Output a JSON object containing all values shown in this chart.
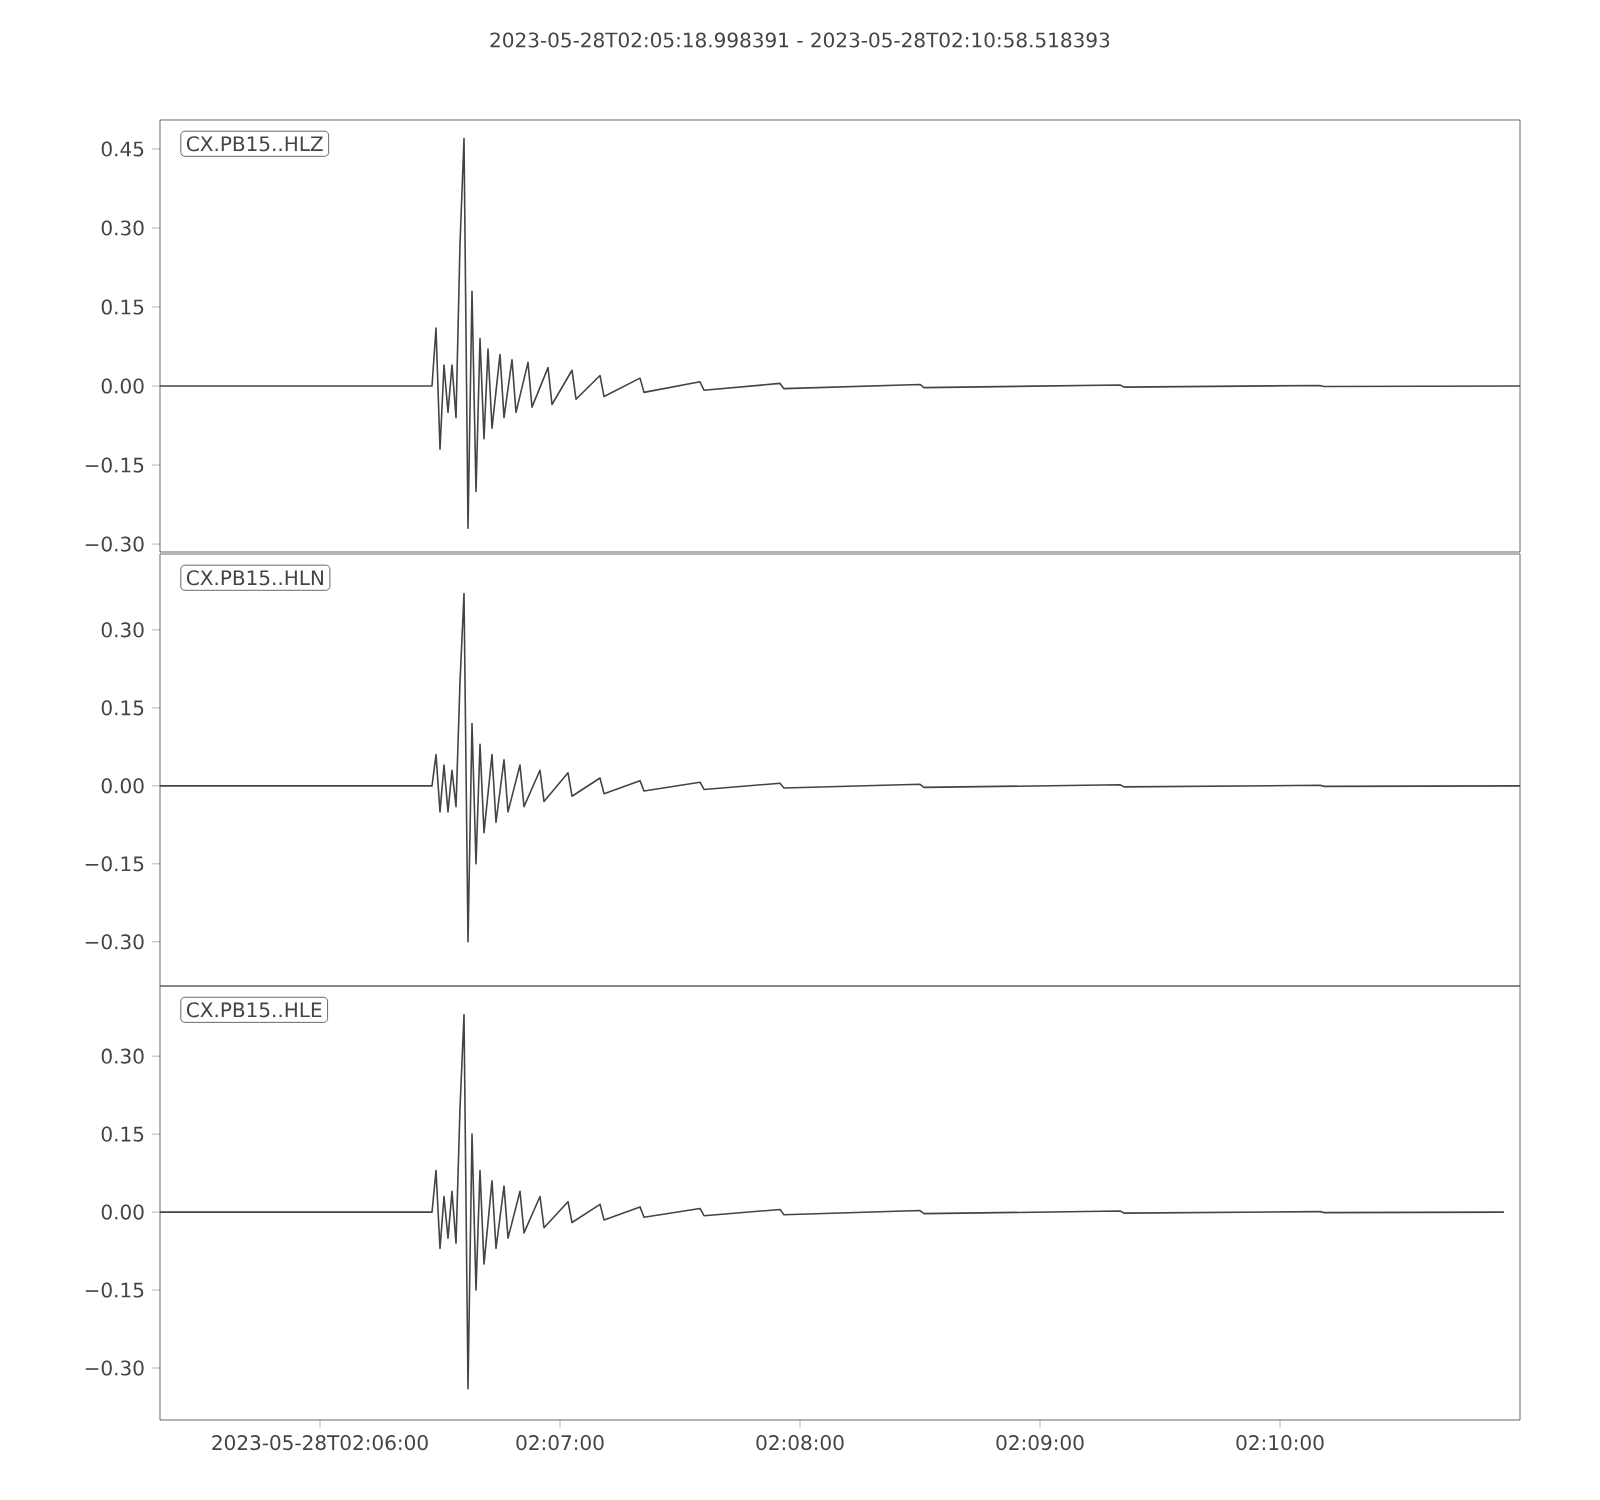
{
  "chart_data": [
    {
      "type": "line",
      "title": "2023-05-28T02:05:18.998391  -  2023-05-28T02:10:58.518393",
      "annotations": [
        "CX.PB15..HLZ"
      ],
      "tick_labels": "y",
      "x": [
        "2023-05-28T02:05:20",
        "2023-05-28T02:06:28",
        "2023-05-28T02:06:29",
        "2023-05-28T02:06:30",
        "2023-05-28T02:06:31",
        "2023-05-28T02:06:32",
        "2023-05-28T02:06:33",
        "2023-05-28T02:06:34",
        "2023-05-28T02:06:35",
        "2023-05-28T02:06:36",
        "2023-05-28T02:06:37",
        "2023-05-28T02:06:38",
        "2023-05-28T02:06:39",
        "2023-05-28T02:06:40",
        "2023-05-28T02:06:41",
        "2023-05-28T02:06:42",
        "2023-05-28T02:06:43",
        "2023-05-28T02:06:45",
        "2023-05-28T02:06:46",
        "2023-05-28T02:06:48",
        "2023-05-28T02:06:49",
        "2023-05-28T02:06:52",
        "2023-05-28T02:06:53",
        "2023-05-28T02:06:57",
        "2023-05-28T02:06:58",
        "2023-05-28T02:07:03",
        "2023-05-28T02:07:04",
        "2023-05-28T02:07:10",
        "2023-05-28T02:07:11",
        "2023-05-28T02:07:20",
        "2023-05-28T02:07:21",
        "2023-05-28T02:07:35",
        "2023-05-28T02:07:36",
        "2023-05-28T02:07:55",
        "2023-05-28T02:07:56",
        "2023-05-28T02:08:30",
        "2023-05-28T02:08:31",
        "2023-05-28T02:09:20",
        "2023-05-28T02:09:21",
        "2023-05-28T02:10:10",
        "2023-05-28T02:10:11",
        "2023-05-28T02:11:00"
      ],
      "series": [
        {
          "color": "#444444",
          "values": [
            0,
            0,
            0.11,
            -0.12,
            0.04,
            -0.05,
            0.04,
            -0.06,
            0.27,
            0.47,
            -0.27,
            0.18,
            -0.2,
            0.09,
            -0.1,
            0.07,
            -0.08,
            0.06,
            -0.06,
            0.05,
            -0.05,
            0.045,
            -0.04,
            0.035,
            -0.035,
            0.03,
            -0.025,
            0.02,
            -0.02,
            0.015,
            -0.012,
            0.008,
            -0.008,
            0.005,
            -0.005,
            0.003,
            -0.003,
            0.002,
            -0.002,
            0.001,
            -0.001,
            0
          ]
        }
      ],
      "xlim": [
        "2023-05-28T02:05:20",
        "2023-05-28T02:11:00"
      ],
      "ylim": [
        -0.315,
        0.505
      ],
      "yticks": [
        {
          "value": -0.3,
          "label": "−0.30"
        },
        {
          "value": -0.15,
          "label": "−0.15"
        },
        {
          "value": 0,
          "label": "0.00"
        },
        {
          "value": 0.15,
          "label": "0.15"
        },
        {
          "value": 0.3,
          "label": "0.30"
        },
        {
          "value": 0.45,
          "label": "0.45"
        }
      ]
    },
    {
      "type": "line",
      "annotations": [
        "CX.PB15..HLN"
      ],
      "tick_labels": "y",
      "x": [
        "2023-05-28T02:05:20",
        "2023-05-28T02:06:28",
        "2023-05-28T02:06:29",
        "2023-05-28T02:06:30",
        "2023-05-28T02:06:31",
        "2023-05-28T02:06:32",
        "2023-05-28T02:06:33",
        "2023-05-28T02:06:34",
        "2023-05-28T02:06:35",
        "2023-05-28T02:06:36",
        "2023-05-28T02:06:37",
        "2023-05-28T02:06:38",
        "2023-05-28T02:06:39",
        "2023-05-28T02:06:40",
        "2023-05-28T02:06:41",
        "2023-05-28T02:06:43",
        "2023-05-28T02:06:44",
        "2023-05-28T02:06:46",
        "2023-05-28T02:06:47",
        "2023-05-28T02:06:50",
        "2023-05-28T02:06:51",
        "2023-05-28T02:06:55",
        "2023-05-28T02:06:56",
        "2023-05-28T02:07:02",
        "2023-05-28T02:07:03",
        "2023-05-28T02:07:10",
        "2023-05-28T02:07:11",
        "2023-05-28T02:07:20",
        "2023-05-28T02:07:21",
        "2023-05-28T02:07:35",
        "2023-05-28T02:07:36",
        "2023-05-28T02:07:55",
        "2023-05-28T02:07:56",
        "2023-05-28T02:08:30",
        "2023-05-28T02:08:31",
        "2023-05-28T02:09:20",
        "2023-05-28T02:09:21",
        "2023-05-28T02:10:10",
        "2023-05-28T02:10:11",
        "2023-05-28T02:11:00"
      ],
      "series": [
        {
          "color": "#444444",
          "values": [
            0,
            0,
            0.06,
            -0.05,
            0.04,
            -0.05,
            0.03,
            -0.04,
            0.2,
            0.37,
            -0.3,
            0.12,
            -0.15,
            0.08,
            -0.09,
            0.06,
            -0.07,
            0.05,
            -0.05,
            0.04,
            -0.04,
            0.03,
            -0.03,
            0.025,
            -0.02,
            0.015,
            -0.015,
            0.01,
            -0.01,
            0.007,
            -0.007,
            0.005,
            -0.004,
            0.003,
            -0.003,
            0.002,
            -0.002,
            0.001,
            -0.001,
            0
          ]
        }
      ],
      "xlim": [
        "2023-05-28T02:05:20",
        "2023-05-28T02:11:00"
      ],
      "ylim": [
        -0.385,
        0.446
      ],
      "yticks": [
        {
          "value": -0.3,
          "label": "−0.30"
        },
        {
          "value": -0.15,
          "label": "−0.15"
        },
        {
          "value": 0,
          "label": "0.00"
        },
        {
          "value": 0.15,
          "label": "0.15"
        },
        {
          "value": 0.3,
          "label": "0.30"
        }
      ]
    },
    {
      "type": "line",
      "annotations": [
        "CX.PB15..HLE"
      ],
      "x": [
        "2023-05-28T02:05:20",
        "2023-05-28T02:06:28",
        "2023-05-28T02:06:29",
        "2023-05-28T02:06:30",
        "2023-05-28T02:06:31",
        "2023-05-28T02:06:32",
        "2023-05-28T02:06:33",
        "2023-05-28T02:06:34",
        "2023-05-28T02:06:35",
        "2023-05-28T02:06:36",
        "2023-05-28T02:06:37",
        "2023-05-28T02:06:38",
        "2023-05-28T02:06:39",
        "2023-05-28T02:06:40",
        "2023-05-28T02:06:41",
        "2023-05-28T02:06:43",
        "2023-05-28T02:06:44",
        "2023-05-28T02:06:46",
        "2023-05-28T02:06:47",
        "2023-05-28T02:06:50",
        "2023-05-28T02:06:51",
        "2023-05-28T02:06:55",
        "2023-05-28T02:06:56",
        "2023-05-28T02:07:02",
        "2023-05-28T02:07:03",
        "2023-05-28T02:07:10",
        "2023-05-28T02:07:11",
        "2023-05-28T02:07:20",
        "2023-05-28T02:07:21",
        "2023-05-28T02:07:35",
        "2023-05-28T02:07:36",
        "2023-05-28T02:07:55",
        "2023-05-28T02:07:56",
        "2023-05-28T02:08:30",
        "2023-05-28T02:08:31",
        "2023-05-28T02:09:20",
        "2023-05-28T02:09:21",
        "2023-05-28T02:10:10",
        "2023-05-28T02:10:11",
        "2023-05-28T02:10:56"
      ],
      "series": [
        {
          "color": "#444444",
          "values": [
            0,
            0,
            0.08,
            -0.07,
            0.03,
            -0.05,
            0.04,
            -0.06,
            0.2,
            0.38,
            -0.34,
            0.15,
            -0.15,
            0.08,
            -0.1,
            0.06,
            -0.07,
            0.05,
            -0.05,
            0.04,
            -0.04,
            0.03,
            -0.03,
            0.02,
            -0.02,
            0.015,
            -0.015,
            0.01,
            -0.01,
            0.007,
            -0.007,
            0.005,
            -0.005,
            0.003,
            -0.003,
            0.002,
            -0.002,
            0.001,
            -0.001,
            0
          ]
        }
      ],
      "xlim": [
        "2023-05-28T02:05:20",
        "2023-05-28T02:11:00"
      ],
      "ylim": [
        -0.4,
        0.435
      ],
      "xticks": [
        {
          "value": "2023-05-28T02:06:00",
          "label": "2023-05-28T02:06:00"
        },
        {
          "value": "2023-05-28T02:07:00",
          "label": "02:07:00"
        },
        {
          "value": "2023-05-28T02:08:00",
          "label": "02:08:00"
        },
        {
          "value": "2023-05-28T02:09:00",
          "label": "02:09:00"
        },
        {
          "value": "2023-05-28T02:10:00",
          "label": "02:10:00"
        }
      ],
      "yticks": [
        {
          "value": -0.3,
          "label": "−0.30"
        },
        {
          "value": -0.15,
          "label": "−0.15"
        },
        {
          "value": 0,
          "label": "0.00"
        },
        {
          "value": 0.15,
          "label": "0.15"
        },
        {
          "value": 0.3,
          "label": "0.30"
        }
      ]
    }
  ]
}
